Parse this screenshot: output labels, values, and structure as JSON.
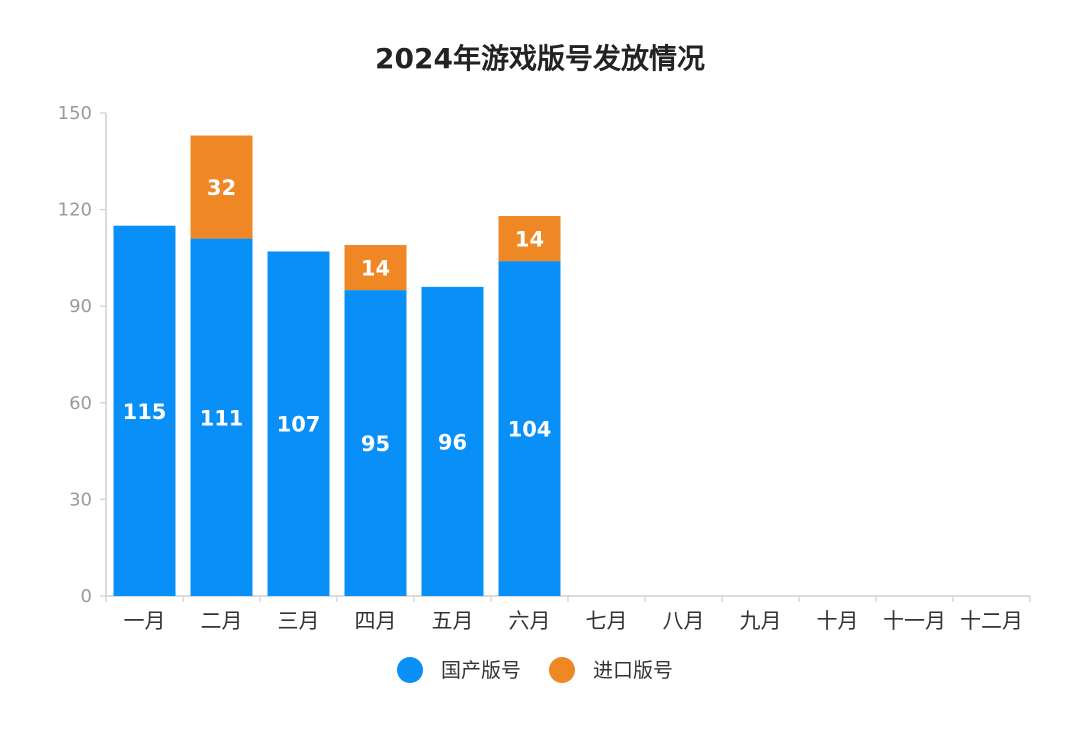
{
  "chart_data": {
    "type": "bar",
    "stacked": true,
    "title": "2024年游戏版号发放情况",
    "xlabel": "",
    "ylabel": "",
    "categories": [
      "一月",
      "二月",
      "三月",
      "四月",
      "五月",
      "六月",
      "七月",
      "八月",
      "九月",
      "十月",
      "十一月",
      "十二月"
    ],
    "series": [
      {
        "name": "国产版号",
        "color": "#0890f8",
        "values": [
          115,
          111,
          107,
          95,
          96,
          104,
          null,
          null,
          null,
          null,
          null,
          null
        ]
      },
      {
        "name": "进口版号",
        "color": "#f08725",
        "values": [
          null,
          32,
          null,
          14,
          null,
          14,
          null,
          null,
          null,
          null,
          null,
          null
        ]
      }
    ],
    "ylim": [
      0,
      150
    ],
    "yticks": [
      0,
      30,
      60,
      90,
      120,
      150
    ],
    "grid": false,
    "legend": "bottom-center",
    "data_labels": true
  }
}
